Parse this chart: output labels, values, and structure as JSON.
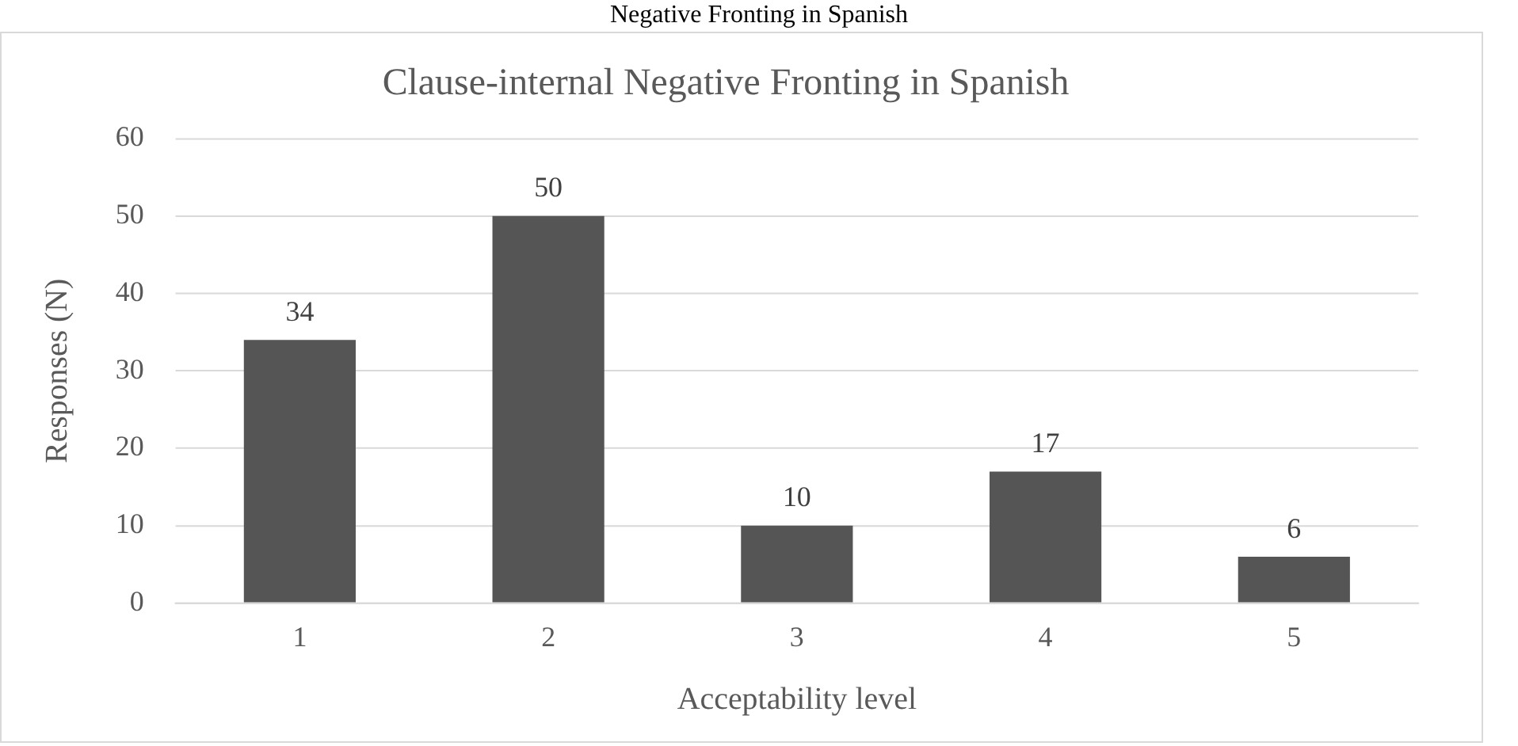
{
  "chart_data": {
    "type": "bar",
    "title": "Clause-internal Negative Fronting in Spanish",
    "xlabel": "Acceptability level",
    "ylabel": "Responses (N)",
    "annotations": [
      "Negative Fronting in Spanish"
    ],
    "categories": [
      "1",
      "2",
      "3",
      "4",
      "5"
    ],
    "values": [
      34,
      50,
      10,
      17,
      6
    ],
    "color": "#555555",
    "ylim": [
      0,
      60
    ],
    "yticks": [
      0,
      10,
      20,
      30,
      40,
      50,
      60
    ],
    "grid": "y",
    "data_labels": true
  }
}
